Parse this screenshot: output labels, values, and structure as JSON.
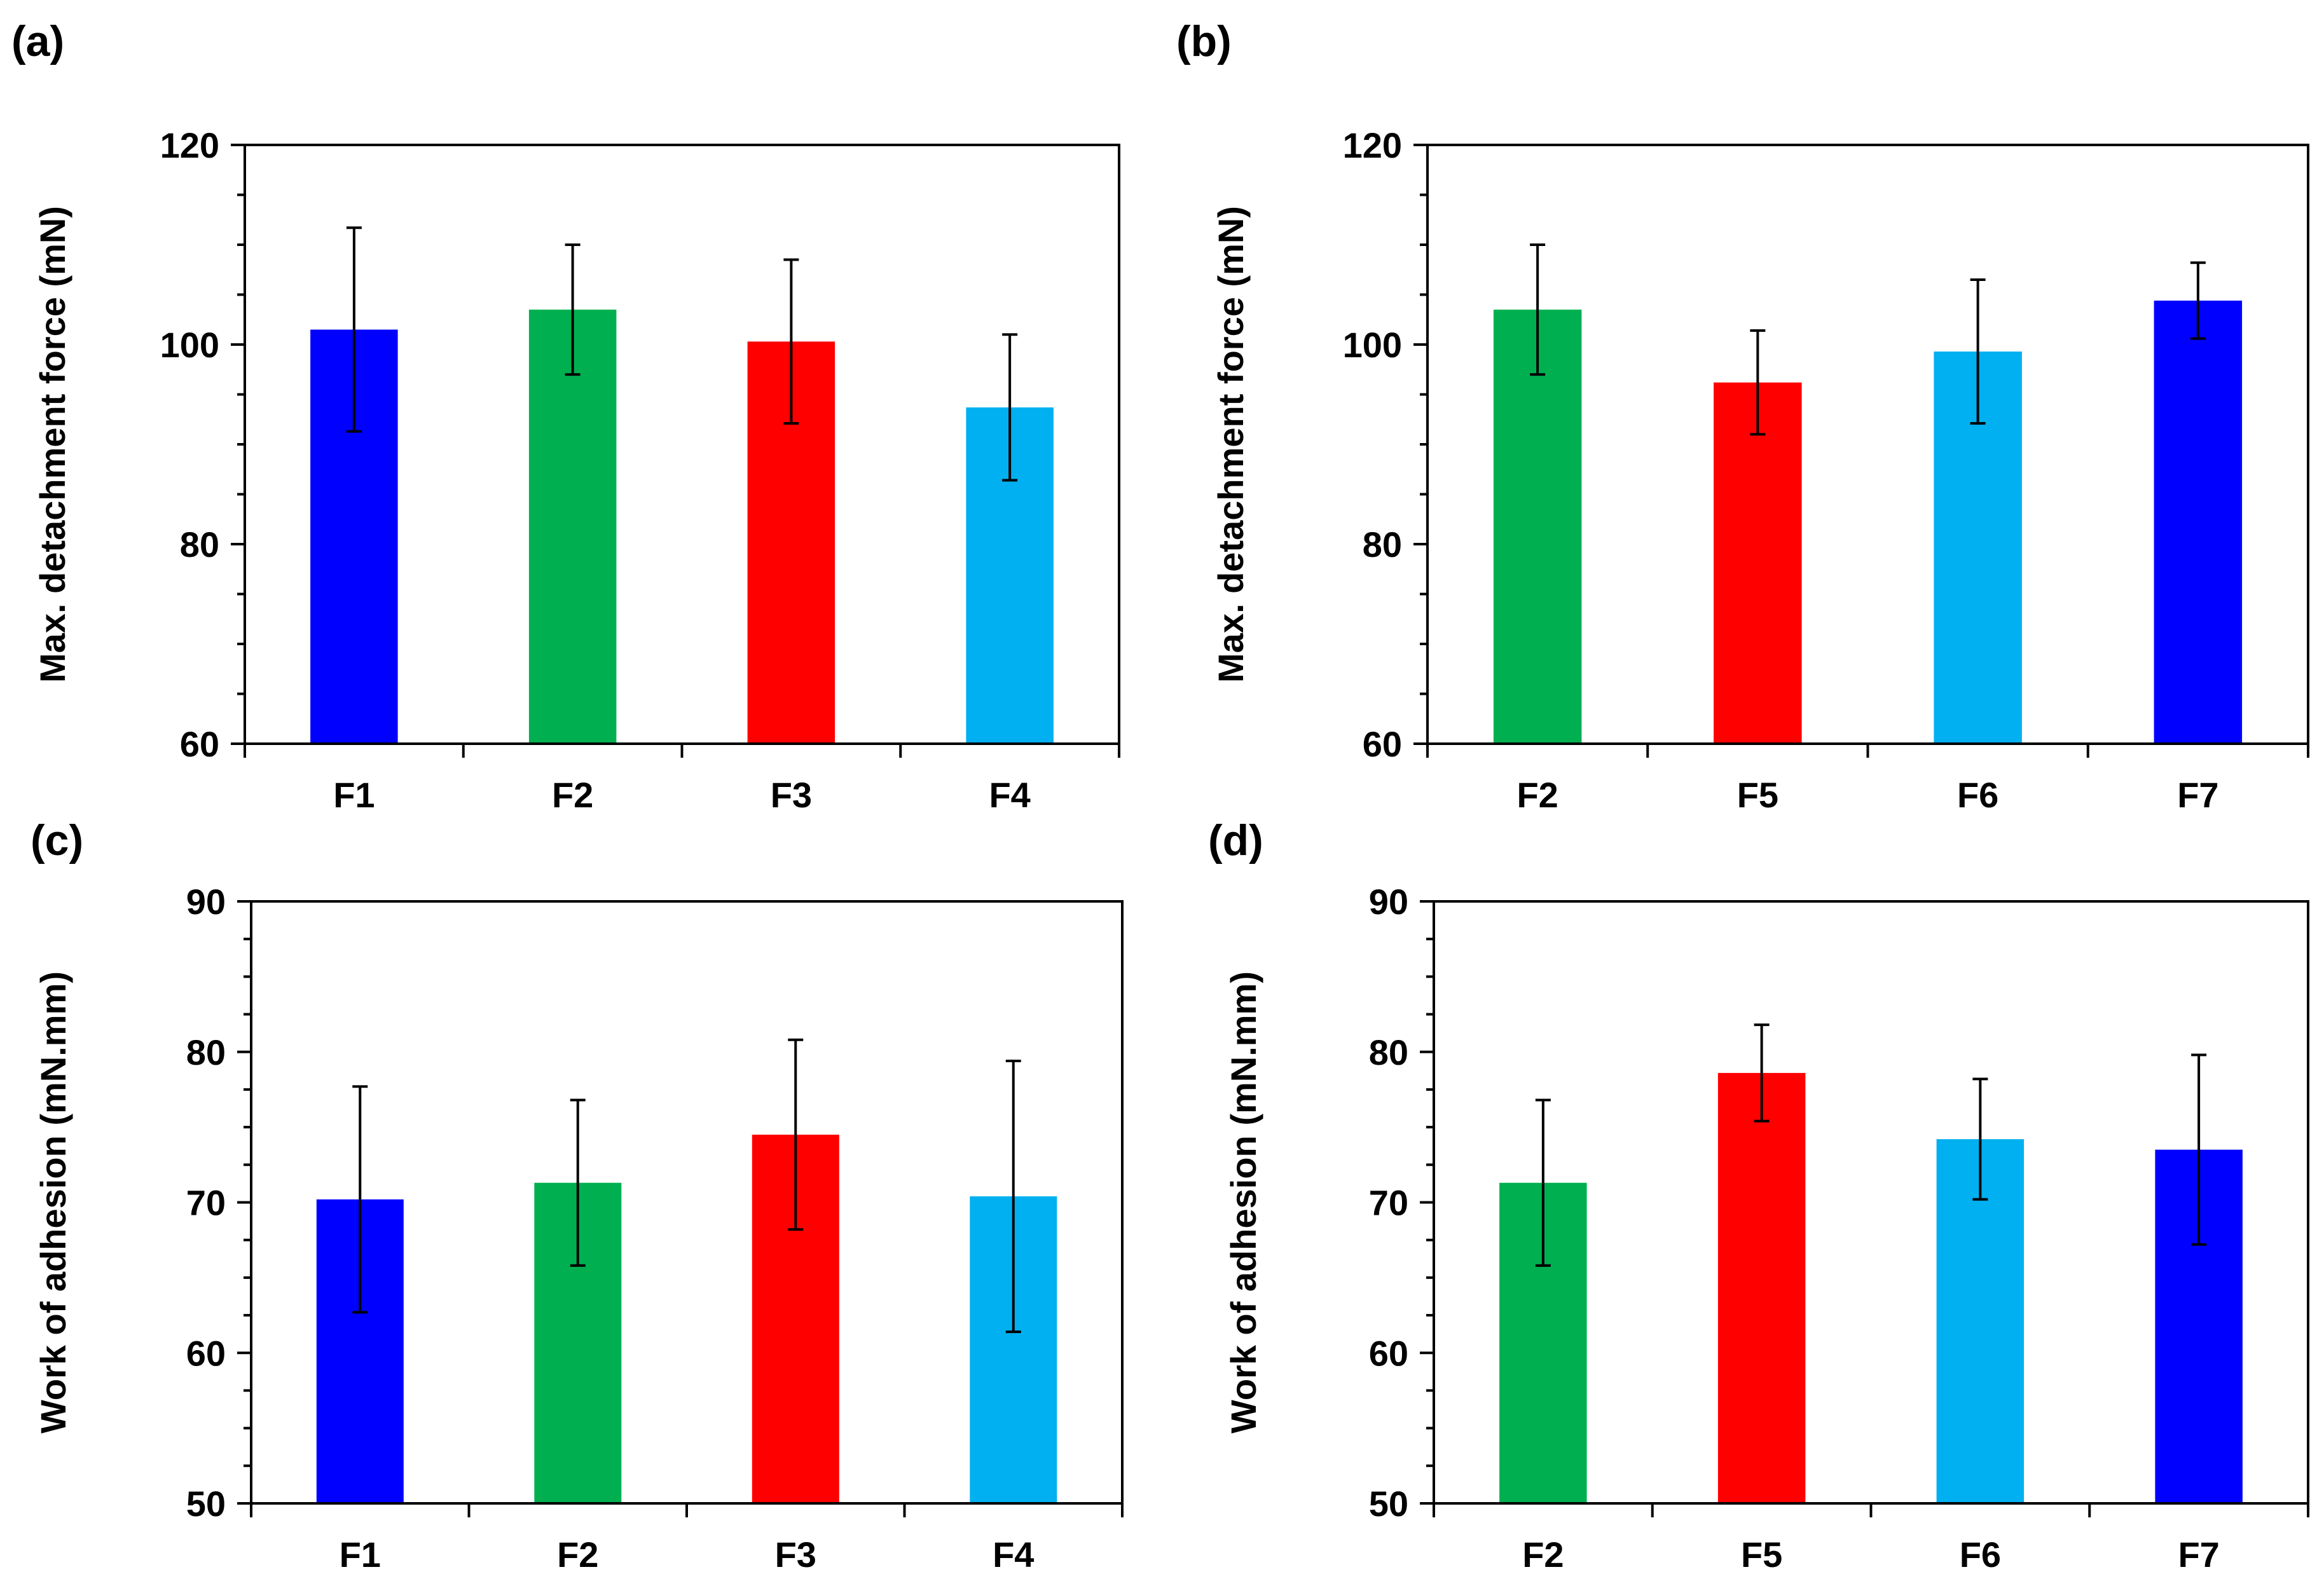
{
  "figure": {
    "colors": {
      "blue": "#0000ff",
      "green": "#00b050",
      "red": "#ff0000",
      "light_blue": "#00b0f0",
      "axis": "#000000",
      "error_bar": "#000000"
    }
  },
  "chart_data": [
    {
      "id": "a",
      "panel_label": "(a)",
      "type": "bar",
      "categories": [
        "F1",
        "F2",
        "F3",
        "F4"
      ],
      "values": [
        101.5,
        103.5,
        100.3,
        93.7
      ],
      "errors": [
        10.2,
        6.5,
        8.2,
        7.3
      ],
      "colors": [
        "#0000ff",
        "#00b050",
        "#ff0000",
        "#00b0f0"
      ],
      "ylabel": "Max. detachment force (mN)",
      "xlabel": "",
      "ylim": [
        60,
        120
      ],
      "yticks": [
        60,
        80,
        100,
        120
      ],
      "ytick_labels": [
        "60",
        "80",
        "100",
        "120"
      ],
      "minor_step": 5,
      "grid": false,
      "legend": "none"
    },
    {
      "id": "b",
      "panel_label": "(b)",
      "type": "bar",
      "categories": [
        "F2",
        "F5",
        "F6",
        "F7"
      ],
      "values": [
        103.5,
        96.2,
        99.3,
        104.4
      ],
      "errors": [
        6.5,
        5.2,
        7.2,
        3.8
      ],
      "colors": [
        "#00b050",
        "#ff0000",
        "#00b0f0",
        "#0000ff"
      ],
      "ylabel": "Max. detachment force (mN)",
      "xlabel": "",
      "ylim": [
        60,
        120
      ],
      "yticks": [
        60,
        80,
        100,
        120
      ],
      "ytick_labels": [
        "60",
        "80",
        "100",
        "120"
      ],
      "minor_step": 5,
      "grid": false,
      "legend": "none"
    },
    {
      "id": "c",
      "panel_label": "(c)",
      "type": "bar",
      "categories": [
        "F1",
        "F2",
        "F3",
        "F4"
      ],
      "values": [
        70.2,
        71.3,
        74.5,
        70.4
      ],
      "errors": [
        7.5,
        5.5,
        6.3,
        9.0
      ],
      "colors": [
        "#0000ff",
        "#00b050",
        "#ff0000",
        "#00b0f0"
      ],
      "ylabel": "Work of adhesion (mN.mm)",
      "xlabel": "",
      "ylim": [
        50,
        90
      ],
      "yticks": [
        50,
        60,
        70,
        80,
        90
      ],
      "ytick_labels": [
        "50",
        "60",
        "70",
        "80",
        "90"
      ],
      "minor_step": 2.5,
      "grid": false,
      "legend": "none"
    },
    {
      "id": "d",
      "panel_label": "(d)",
      "type": "bar",
      "categories": [
        "F2",
        "F5",
        "F6",
        "F7"
      ],
      "values": [
        71.3,
        78.6,
        74.2,
        73.5
      ],
      "errors": [
        5.5,
        3.2,
        4.0,
        6.3
      ],
      "colors": [
        "#00b050",
        "#ff0000",
        "#00b0f0",
        "#0000ff"
      ],
      "ylabel": "Work of adhesion (mN.mm)",
      "xlabel": "",
      "ylim": [
        50,
        90
      ],
      "yticks": [
        50,
        60,
        70,
        80,
        90
      ],
      "ytick_labels": [
        "50",
        "60",
        "70",
        "80",
        "90"
      ],
      "minor_step": 2.5,
      "grid": false,
      "legend": "none"
    }
  ]
}
